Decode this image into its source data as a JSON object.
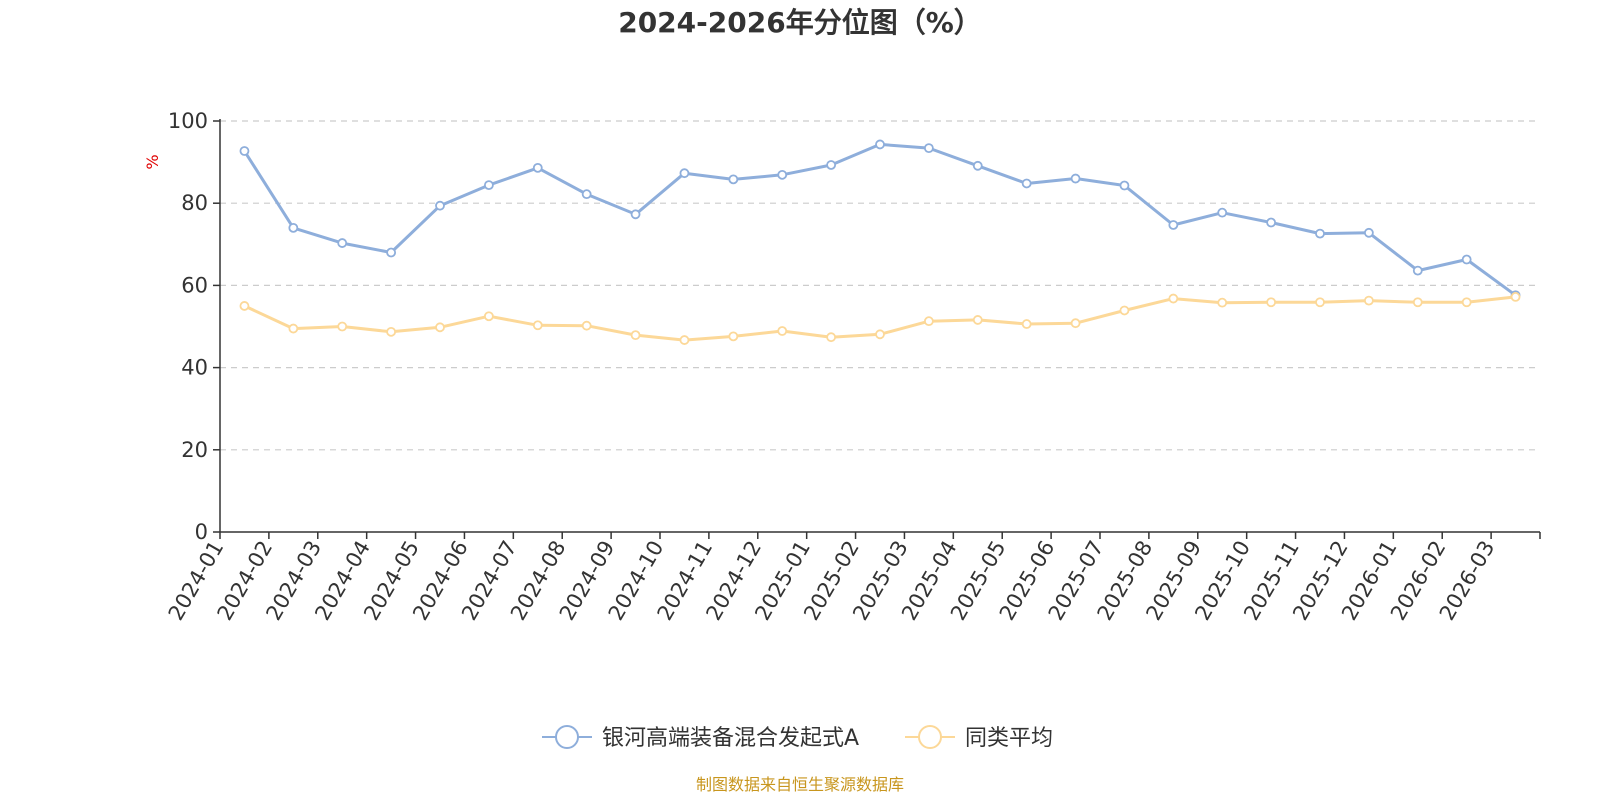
{
  "chart_data": {
    "type": "line",
    "title": "2024-2026年分位图（%）",
    "ylabel": "%",
    "ylim": [
      0,
      100
    ],
    "yticks": [
      0,
      20,
      40,
      60,
      80,
      100
    ],
    "grid": true,
    "legend_position": "bottom",
    "categories": [
      "2024-01",
      "2024-02",
      "2024-03",
      "2024-04",
      "2024-05",
      "2024-06",
      "2024-07",
      "2024-08",
      "2024-09",
      "2024-10",
      "2024-11",
      "2024-12",
      "2025-01",
      "2025-02",
      "2025-03",
      "2025-04",
      "2025-05",
      "2025-06",
      "2025-07",
      "2025-08",
      "2025-09",
      "2025-10",
      "2025-11",
      "2025-12",
      "2026-01",
      "2026-02",
      "2026-03"
    ],
    "series": [
      {
        "name": "银河高端装备混合发起式A",
        "color": "#8eaedb",
        "values": [
          92.7,
          74.0,
          70.3,
          68.0,
          79.4,
          84.4,
          88.6,
          82.2,
          77.3,
          87.3,
          85.8,
          86.9,
          89.3,
          94.3,
          93.4,
          89.1,
          84.8,
          86.0,
          84.3,
          74.7,
          77.7,
          75.3,
          72.6,
          72.8,
          63.6,
          66.3,
          57.6
        ]
      },
      {
        "name": "同类平均",
        "color": "#fcd898",
        "values": [
          55.0,
          49.5,
          50.0,
          48.7,
          49.8,
          52.5,
          50.3,
          50.2,
          47.9,
          46.7,
          47.6,
          48.9,
          47.4,
          48.1,
          51.3,
          51.6,
          50.6,
          50.8,
          53.9,
          56.8,
          55.8,
          55.9,
          55.9,
          56.3,
          55.9,
          55.9,
          57.2
        ]
      }
    ]
  },
  "footer": {
    "source": "制图数据来自恒生聚源数据库"
  }
}
